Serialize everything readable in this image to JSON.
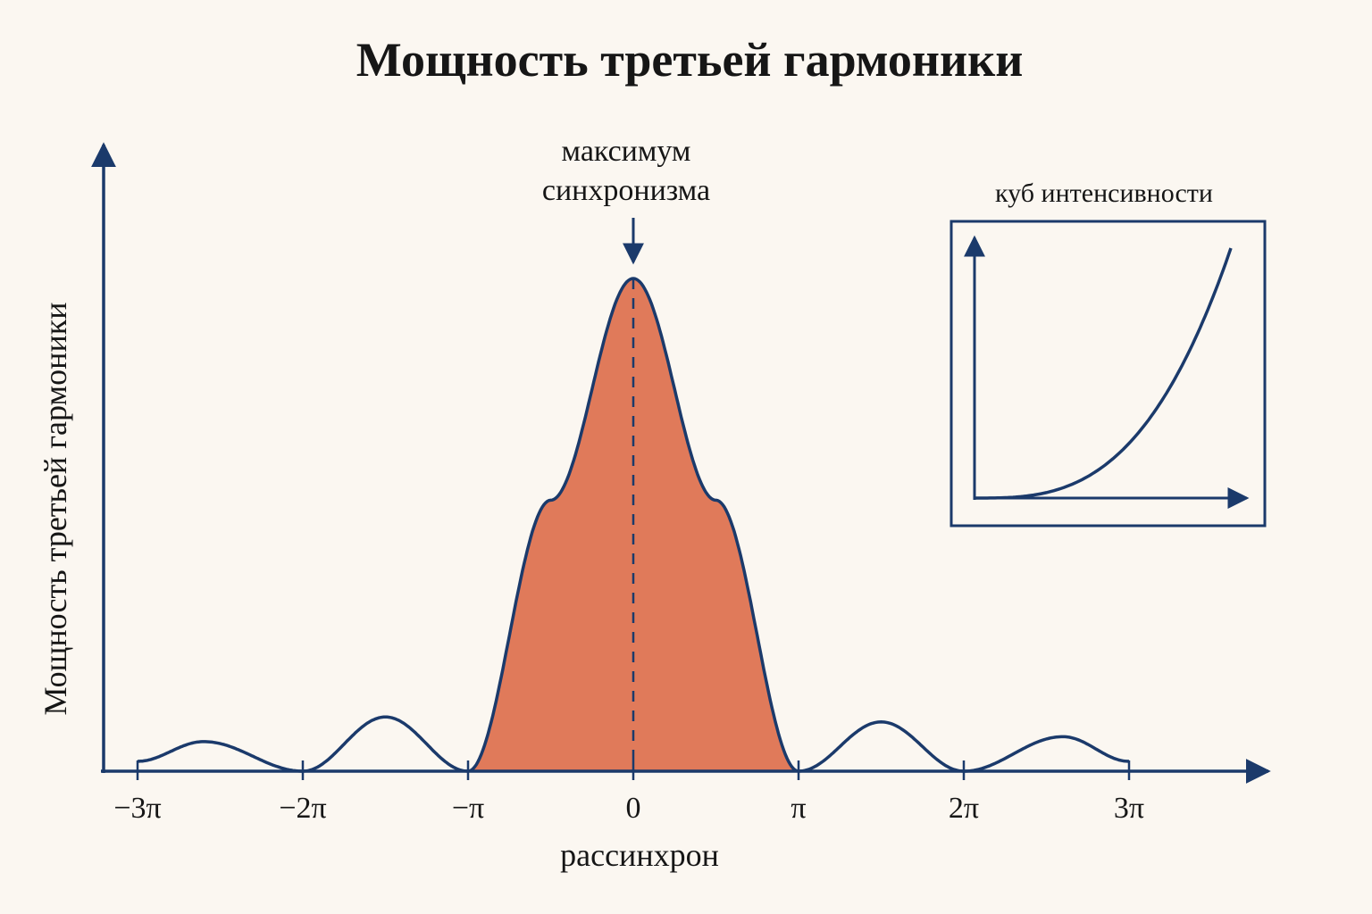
{
  "colors": {
    "axis": "#1b3a6b",
    "curve": "#1b3a6b",
    "fill": "#e07a5a",
    "background": "#fbf7f1",
    "text": "#161616"
  },
  "chart_data": [
    {
      "type": "line",
      "title": "Мощность третьей гармоники",
      "xlabel": "рассинхрон",
      "ylabel": "Мощность третьей гармоники",
      "x_ticks": [
        {
          "value": -3,
          "label": "−3π"
        },
        {
          "value": -2,
          "label": "−2π"
        },
        {
          "value": -1,
          "label": "−π"
        },
        {
          "value": 0,
          "label": "0"
        },
        {
          "value": 1,
          "label": "π"
        },
        {
          "value": 2,
          "label": "2π"
        },
        {
          "value": 3,
          "label": "3π"
        }
      ],
      "xlim": [
        -3,
        3
      ],
      "x_unit": "π",
      "grid": false,
      "series": [
        {
          "x": [
            -3,
            -2.6,
            -2,
            -1.5,
            -1,
            -0.5,
            0,
            0.5,
            1,
            1.5,
            2,
            2.6,
            3
          ],
          "y": [
            0.02,
            0.06,
            0,
            0.11,
            0,
            0.55,
            1,
            0.55,
            0,
            0.1,
            0,
            0.07,
            0.02
          ]
        }
      ],
      "shaded_region": {
        "x_from": -1,
        "x_to": 1
      },
      "annotation": {
        "lines": [
          "максимум",
          "синхронизма"
        ],
        "x": 0
      }
    },
    {
      "type": "line",
      "title": "куб интенсивности",
      "placement": "inset top-right",
      "series": [
        {
          "x": [
            0,
            0.2,
            0.4,
            0.6,
            0.8,
            1
          ],
          "y": [
            0,
            0.008,
            0.064,
            0.216,
            0.512,
            1
          ]
        }
      ]
    }
  ]
}
